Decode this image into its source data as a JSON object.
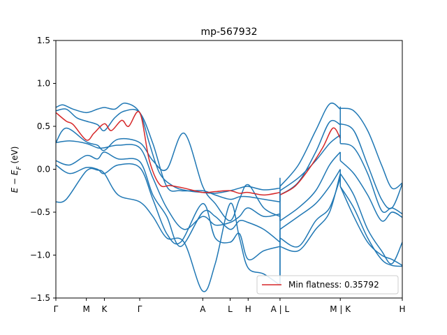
{
  "chart_data": {
    "type": "line",
    "title": "mp-567932",
    "xlabel": "",
    "ylabel": "E − E_F (eV)",
    "ylabel_main": "E − E",
    "ylabel_sub": "F",
    "ylabel_unit": " (eV)",
    "ylim": [
      -1.5,
      1.5
    ],
    "xlim": [
      0,
      10
    ],
    "y_ticks": [
      -1.5,
      -1.0,
      -0.5,
      0.0,
      0.5,
      1.0,
      1.5
    ],
    "y_tick_labels": [
      "−1.5",
      "−1.0",
      "−0.5",
      "0.0",
      "0.5",
      "1.0",
      "1.5"
    ],
    "x_ticks": [
      {
        "pos": 0.0,
        "label": "Γ"
      },
      {
        "pos": 0.88,
        "label": "M"
      },
      {
        "pos": 1.4,
        "label": "K"
      },
      {
        "pos": 2.42,
        "label": "Γ"
      },
      {
        "pos": 4.24,
        "label": "A"
      },
      {
        "pos": 5.03,
        "label": "L"
      },
      {
        "pos": 5.55,
        "label": "H"
      },
      {
        "pos": 6.47,
        "label": "A | L"
      },
      {
        "pos": 8.21,
        "label": "M | K"
      },
      {
        "pos": 10.0,
        "label": "H"
      }
    ],
    "discontinuities": [
      6.47,
      8.21
    ],
    "grid": false,
    "legend_position": "lower-right",
    "colors": {
      "bands": "#1f77b4",
      "flat_band": "#d62728"
    },
    "legend": [
      {
        "label": "Min flatness: 0.35792",
        "color": "#d62728"
      }
    ],
    "series": [
      {
        "name": "Min flatness: 0.35792",
        "highlight": true,
        "x": [
          0,
          0.3,
          0.5,
          0.88,
          1.1,
          1.4,
          1.6,
          1.9,
          2.1,
          2.42,
          2.7,
          3.0,
          3.3,
          3.7,
          4.24,
          4.6,
          5.03,
          5.3,
          5.55,
          6.0,
          6.47,
          6.47,
          6.9,
          7.3,
          7.7,
          8.0,
          8.21
        ],
        "y": [
          0.66,
          0.56,
          0.52,
          0.34,
          0.42,
          0.53,
          0.45,
          0.57,
          0.5,
          0.66,
          0.1,
          -0.18,
          -0.19,
          -0.22,
          -0.27,
          -0.26,
          -0.25,
          -0.28,
          -0.27,
          -0.3,
          -0.27,
          -0.3,
          -0.2,
          0.0,
          0.25,
          0.48,
          0.36
        ]
      },
      {
        "x": [
          0,
          0.2,
          0.5,
          0.88,
          1.2,
          1.4,
          1.7,
          2.0,
          2.42,
          2.7,
          3.0,
          3.4,
          3.8,
          4.24,
          4.6,
          5.03,
          5.3,
          5.55,
          6.0,
          6.47,
          6.47,
          7.0,
          7.5,
          7.9,
          8.21,
          8.21,
          8.6,
          9.0,
          9.4,
          9.7,
          10.0
        ],
        "y": [
          0.72,
          0.75,
          0.7,
          0.66,
          0.7,
          0.72,
          0.7,
          0.77,
          0.66,
          0.3,
          -0.05,
          -0.2,
          -0.25,
          -0.27,
          -0.28,
          -0.25,
          -0.22,
          -0.2,
          -0.24,
          -0.22,
          -0.2,
          0.05,
          0.45,
          0.76,
          0.7,
          0.71,
          0.68,
          0.45,
          0.05,
          -0.22,
          -0.16
        ]
      },
      {
        "x": [
          0,
          0.3,
          0.6,
          0.88,
          1.2,
          1.4,
          1.7,
          2.0,
          2.42,
          2.8,
          3.2,
          3.6,
          4.24,
          4.6,
          5.03,
          5.3,
          5.55,
          6.0,
          6.47,
          6.47,
          7.0,
          7.5,
          7.9,
          8.21,
          8.21,
          8.6,
          9.0,
          9.4,
          9.7,
          10.0
        ],
        "y": [
          0.68,
          0.7,
          0.6,
          0.56,
          0.52,
          0.45,
          0.6,
          0.68,
          0.66,
          0.3,
          -0.2,
          -0.25,
          -0.25,
          -0.3,
          -0.35,
          -0.32,
          -0.32,
          -0.35,
          -0.38,
          -0.3,
          -0.15,
          0.2,
          0.55,
          0.52,
          0.53,
          0.45,
          0.05,
          -0.35,
          -0.45,
          -0.17
        ]
      },
      {
        "x": [
          0,
          0.3,
          0.88,
          1.2,
          1.4,
          1.8,
          2.42,
          2.8,
          3.2,
          3.7,
          4.24,
          4.6,
          5.03,
          5.3,
          5.55,
          6.0,
          6.47,
          6.47,
          7.0,
          7.5,
          7.9,
          8.21,
          8.21,
          8.6,
          9.0,
          9.4,
          9.7,
          10.0
        ],
        "y": [
          0.31,
          0.48,
          0.32,
          0.28,
          0.22,
          0.35,
          0.31,
          0.1,
          0.0,
          0.42,
          -0.2,
          -0.4,
          -0.6,
          -0.35,
          -0.18,
          -0.45,
          -0.55,
          -0.25,
          -0.1,
          0.1,
          0.3,
          0.4,
          0.3,
          0.25,
          -0.05,
          -0.48,
          -0.45,
          -0.52
        ]
      },
      {
        "x": [
          0,
          0.4,
          0.88,
          1.2,
          1.4,
          1.8,
          2.42,
          2.8,
          3.2,
          3.7,
          4.24,
          4.6,
          5.03,
          5.3,
          5.55,
          6.0,
          6.47,
          6.47,
          7.0,
          7.5,
          7.9,
          8.21,
          8.21,
          8.6,
          9.0,
          9.4,
          9.7,
          10.0
        ],
        "y": [
          0.31,
          0.33,
          0.3,
          0.25,
          0.25,
          0.28,
          0.25,
          -0.1,
          -0.45,
          -0.7,
          -0.55,
          -0.65,
          -0.62,
          -0.55,
          -0.45,
          -0.55,
          -0.52,
          -0.6,
          -0.45,
          -0.25,
          0.05,
          0.2,
          0.1,
          -0.05,
          -0.3,
          -0.6,
          -0.5,
          -0.56
        ]
      },
      {
        "x": [
          0,
          0.4,
          0.88,
          1.2,
          1.4,
          1.8,
          2.42,
          2.8,
          3.2,
          3.6,
          4.24,
          4.6,
          5.03,
          5.3,
          5.55,
          6.0,
          6.47,
          6.47,
          7.0,
          7.5,
          7.9,
          8.21,
          8.21,
          8.6,
          9.0,
          9.4,
          9.7,
          10.0
        ],
        "y": [
          0.1,
          0.05,
          0.16,
          0.12,
          0.2,
          0.12,
          0.09,
          -0.3,
          -0.55,
          -0.9,
          -0.5,
          -0.55,
          -0.7,
          -0.6,
          -0.62,
          -0.7,
          -0.85,
          -0.7,
          -0.55,
          -0.4,
          -0.2,
          0.0,
          -0.05,
          -0.3,
          -0.7,
          -0.95,
          -1.1,
          -0.85
        ]
      },
      {
        "x": [
          0,
          0.4,
          0.88,
          1.2,
          1.4,
          1.8,
          2.42,
          2.8,
          3.2,
          3.6,
          4.24,
          4.6,
          5.03,
          5.3,
          5.55,
          6.0,
          6.47,
          6.47,
          7.0,
          7.5,
          7.9,
          8.21,
          8.21,
          8.6,
          9.0,
          9.4,
          9.7,
          10.0
        ],
        "y": [
          0.05,
          -0.05,
          0.02,
          0.0,
          -0.05,
          0.05,
          0.02,
          -0.35,
          -0.75,
          -0.85,
          -0.4,
          -0.8,
          -0.85,
          -0.75,
          -1.05,
          -0.95,
          -0.9,
          -0.8,
          -0.9,
          -0.6,
          -0.45,
          -0.1,
          -0.2,
          -0.45,
          -0.8,
          -1.05,
          -1.12,
          -1.13
        ]
      },
      {
        "x": [
          0,
          0.3,
          0.88,
          1.2,
          1.4,
          1.8,
          2.42,
          2.8,
          3.2,
          3.7,
          4.24,
          4.6,
          5.03,
          5.3,
          5.55,
          6.0,
          6.47,
          6.47,
          7.0,
          7.5,
          7.9,
          8.21,
          8.21,
          8.6,
          9.0,
          9.4,
          9.7,
          10.0
        ],
        "y": [
          -0.38,
          -0.35,
          -0.02,
          -0.01,
          -0.05,
          -0.3,
          -0.38,
          -0.55,
          -0.8,
          -0.85,
          -1.42,
          -1.1,
          -0.4,
          -0.8,
          -1.15,
          -1.22,
          -1.35,
          -0.9,
          -0.95,
          -0.7,
          -0.5,
          -0.05,
          -0.2,
          -0.55,
          -0.85,
          -1.0,
          -1.05,
          -1.12
        ]
      }
    ]
  }
}
